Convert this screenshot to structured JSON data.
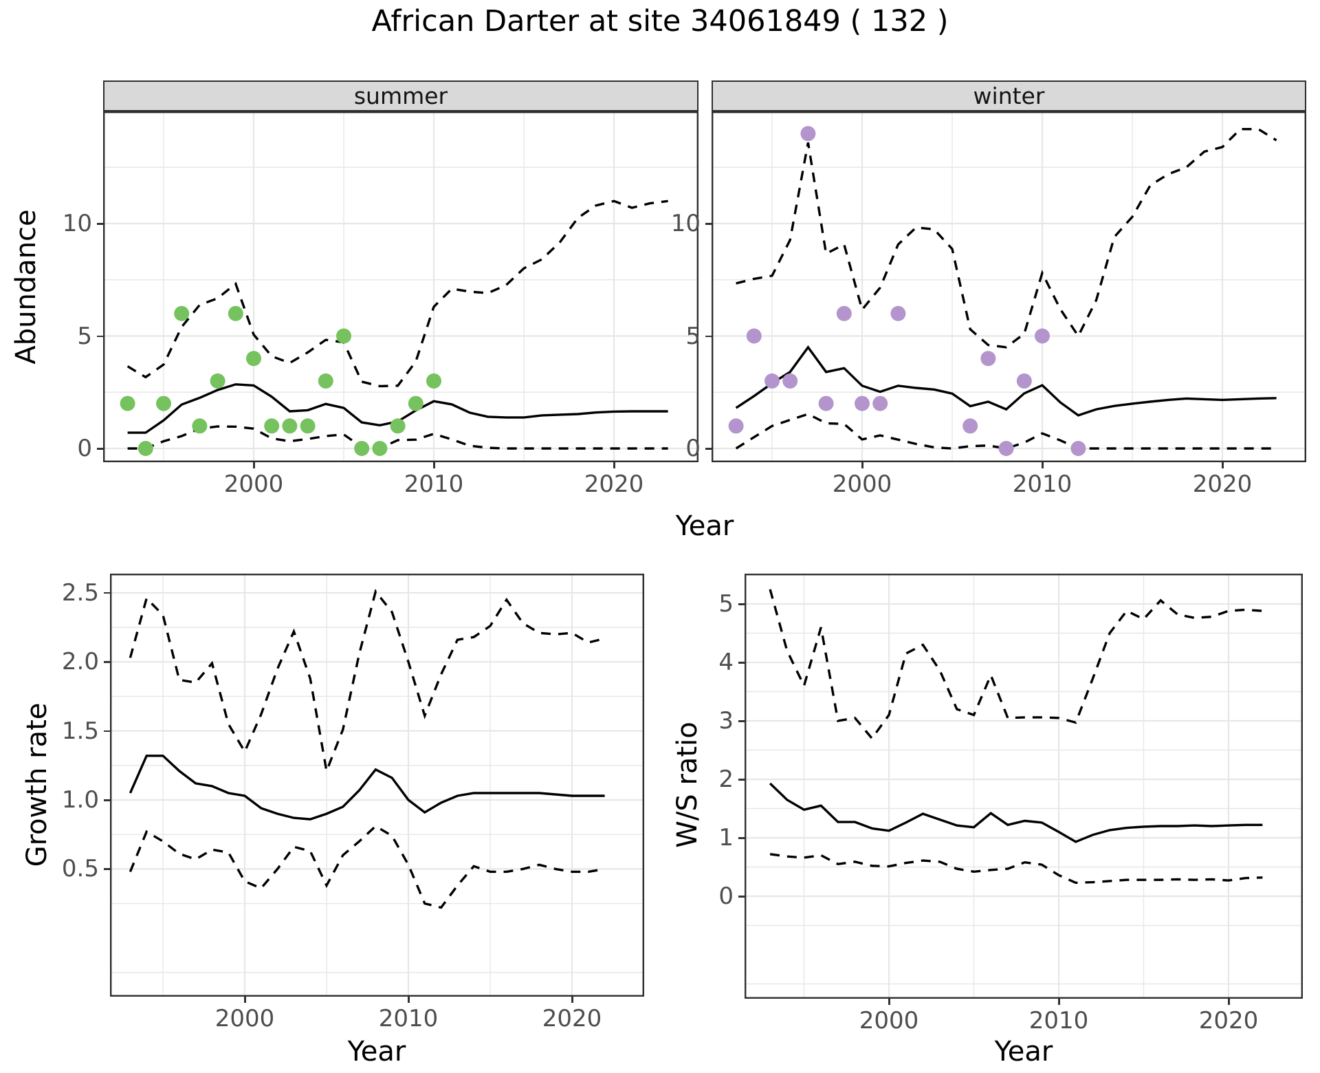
{
  "title": "African Darter at site 34061849 ( 132 )",
  "colors": {
    "summer_points": "#75c25f",
    "winter_points": "#b494cc",
    "line": "#000000",
    "strip_background": "#d9d9d9",
    "gridline": "#e7e7e7",
    "tick_text": "#4d4d4d",
    "panel_border": "#2e2e2e"
  },
  "labels": {
    "facet_summer": "summer",
    "facet_winter": "winter",
    "top_ylabel": "Abundance",
    "top_xlabel": "Year",
    "growth_ylabel": "Growth rate",
    "growth_xlabel": "Year",
    "ws_ylabel": "W/S ratio",
    "ws_xlabel": "Year"
  },
  "chart_data": [
    {
      "panel": "summer",
      "type": "line",
      "title": "summer",
      "xlabel": "Year",
      "ylabel": "Abundance",
      "xlim": [
        1991.6,
        2024.7
      ],
      "ylim": [
        -0.6,
        14.9
      ],
      "x_ticks": [
        2000,
        2010,
        2020
      ],
      "x_tick_labels": [
        "2000",
        "2010",
        "2020"
      ],
      "x_minor": [
        1995,
        2005,
        2015
      ],
      "y_ticks": [
        0,
        5,
        10
      ],
      "y_tick_labels": [
        "0",
        "5",
        "10"
      ],
      "y_minor": [
        2.5,
        7.5,
        12.5
      ],
      "points_color": "#75c25f",
      "points": {
        "years": [
          1993,
          1994,
          1995,
          1996,
          1997,
          1998,
          1999,
          2000,
          2001,
          2002,
          2003,
          2004,
          2005,
          2006,
          2007,
          2008,
          2009,
          2010
        ],
        "values": [
          2,
          0,
          2,
          6,
          1,
          3,
          6,
          4,
          1,
          1,
          1,
          3,
          5,
          0,
          0,
          1,
          2,
          3
        ]
      },
      "series": [
        {
          "name": "median",
          "style": "solid",
          "years": [
            1993,
            1994,
            1995,
            1996,
            1997,
            1998,
            1999,
            2000,
            2001,
            2002,
            2003,
            2004,
            2005,
            2006,
            2007,
            2008,
            2009,
            2010,
            2011,
            2012,
            2013,
            2014,
            2015,
            2016,
            2017,
            2018,
            2019,
            2020,
            2021,
            2022,
            2023
          ],
          "values": [
            0.7,
            0.7,
            1.25,
            1.95,
            2.25,
            2.6,
            2.85,
            2.8,
            2.3,
            1.65,
            1.7,
            1.98,
            1.8,
            1.16,
            1.03,
            1.2,
            1.69,
            2.1,
            1.96,
            1.59,
            1.41,
            1.38,
            1.38,
            1.47,
            1.5,
            1.53,
            1.6,
            1.64,
            1.65,
            1.65,
            1.65
          ]
        },
        {
          "name": "upper_ci",
          "style": "dashed",
          "years": [
            1993,
            1994,
            1995,
            1996,
            1997,
            1998,
            1999,
            2000,
            2001,
            2002,
            2003,
            2004,
            2005,
            2006,
            2007,
            2008,
            2009,
            2010,
            2011,
            2012,
            2013,
            2014,
            2015,
            2016,
            2017,
            2018,
            2019,
            2020,
            2021,
            2022,
            2023
          ],
          "values": [
            3.65,
            3.17,
            3.73,
            5.4,
            6.38,
            6.68,
            7.32,
            5.06,
            4.1,
            3.8,
            4.27,
            4.83,
            4.72,
            2.97,
            2.77,
            2.79,
            3.87,
            6.3,
            7.1,
            6.97,
            6.91,
            7.25,
            8.01,
            8.41,
            9.17,
            10.25,
            10.8,
            11.0,
            10.7,
            10.9,
            11.0
          ]
        },
        {
          "name": "lower_ci",
          "style": "dashed",
          "years": [
            1993,
            1994,
            1995,
            1996,
            1997,
            1998,
            1999,
            2000,
            2001,
            2002,
            2003,
            2004,
            2005,
            2006,
            2007,
            2008,
            2009,
            2010,
            2011,
            2012,
            2013,
            2014,
            2015,
            2016,
            2017,
            2018,
            2019,
            2020,
            2021,
            2022,
            2023
          ],
          "values": [
            0.0,
            0.0,
            0.32,
            0.55,
            0.88,
            0.98,
            0.97,
            0.88,
            0.45,
            0.32,
            0.42,
            0.55,
            0.62,
            0.06,
            0.0,
            0.37,
            0.39,
            0.65,
            0.4,
            0.12,
            0.03,
            0.0,
            0.0,
            0.0,
            0.0,
            0.0,
            0.0,
            0.0,
            0.0,
            0.0,
            0.0
          ]
        }
      ]
    },
    {
      "panel": "winter",
      "type": "line",
      "title": "winter",
      "xlabel": "Year",
      "ylabel": "Abundance",
      "xlim": [
        1991.6,
        2024.7
      ],
      "ylim": [
        -0.6,
        14.9
      ],
      "x_ticks": [
        2000,
        2010,
        2020
      ],
      "x_tick_labels": [
        "2000",
        "2010",
        "2020"
      ],
      "x_minor": [
        1995,
        2005,
        2015
      ],
      "y_ticks": [
        0,
        5,
        10
      ],
      "y_tick_labels": [
        "0",
        "5",
        "10"
      ],
      "y_minor": [
        2.5,
        7.5,
        12.5
      ],
      "points_color": "#b494cc",
      "points": {
        "years": [
          1993,
          1994,
          1995,
          1996,
          1997,
          1998,
          1999,
          2000,
          2001,
          2002,
          2006,
          2007,
          2008,
          2009,
          2010,
          2012
        ],
        "values": [
          1,
          5,
          3,
          3,
          14,
          2,
          6,
          2,
          2,
          6,
          1,
          4,
          0,
          3,
          5,
          0
        ]
      },
      "series": [
        {
          "name": "median",
          "style": "solid",
          "years": [
            1993,
            1994,
            1995,
            1996,
            1997,
            1998,
            1999,
            2000,
            2001,
            2002,
            2003,
            2004,
            2005,
            2006,
            2007,
            2008,
            2009,
            2010,
            2011,
            2012,
            2013,
            2014,
            2015,
            2016,
            2017,
            2018,
            2019,
            2020,
            2021,
            2022,
            2023
          ],
          "values": [
            1.8,
            2.33,
            2.9,
            3.4,
            4.5,
            3.4,
            3.57,
            2.79,
            2.52,
            2.79,
            2.69,
            2.62,
            2.44,
            1.88,
            2.08,
            1.74,
            2.45,
            2.81,
            2.05,
            1.47,
            1.74,
            1.89,
            1.99,
            2.08,
            2.16,
            2.22,
            2.19,
            2.16,
            2.19,
            2.22,
            2.24
          ]
        },
        {
          "name": "upper_ci",
          "style": "dashed",
          "years": [
            1993,
            1994,
            1995,
            1996,
            1997,
            1998,
            1999,
            2000,
            2001,
            2002,
            2003,
            2004,
            2005,
            2006,
            2007,
            2008,
            2009,
            2010,
            2011,
            2012,
            2013,
            2014,
            2015,
            2016,
            2017,
            2018,
            2019,
            2020,
            2021,
            2022,
            2023
          ],
          "values": [
            7.34,
            7.54,
            7.68,
            9.27,
            13.6,
            8.66,
            9.07,
            6.17,
            7.15,
            9.07,
            9.83,
            9.74,
            8.87,
            5.3,
            4.6,
            4.5,
            5.1,
            7.8,
            6.2,
            5.0,
            6.6,
            9.4,
            10.3,
            11.7,
            12.2,
            12.5,
            13.2,
            13.4,
            14.2,
            14.2,
            13.7
          ]
        },
        {
          "name": "lower_ci",
          "style": "dashed",
          "years": [
            1993,
            1994,
            1995,
            1996,
            1997,
            1998,
            1999,
            2000,
            2001,
            2002,
            2003,
            2004,
            2005,
            2006,
            2007,
            2008,
            2009,
            2010,
            2011,
            2012,
            2013,
            2014,
            2015,
            2016,
            2017,
            2018,
            2019,
            2020,
            2021,
            2022,
            2023
          ],
          "values": [
            0.0,
            0.5,
            1.0,
            1.27,
            1.53,
            1.12,
            1.09,
            0.4,
            0.58,
            0.39,
            0.2,
            0.05,
            0.0,
            0.1,
            0.13,
            0.0,
            0.26,
            0.67,
            0.36,
            0.0,
            0.0,
            0.0,
            0.0,
            0.0,
            0.0,
            0.0,
            0.0,
            0.0,
            0.0,
            0.0,
            0.0
          ]
        }
      ]
    },
    {
      "panel": "growth_rate",
      "type": "line",
      "title": "Growth rate",
      "xlabel": "Year",
      "ylabel": "Growth rate",
      "xlim": [
        1991.8,
        2024.4
      ],
      "ylim": [
        -0.43,
        2.64
      ],
      "x_ticks": [
        2000,
        2010,
        2020
      ],
      "x_tick_labels": [
        "2000",
        "2010",
        "2020"
      ],
      "x_minor": [
        1995,
        2005,
        2015
      ],
      "y_ticks": [
        0.5,
        1.0,
        1.5,
        2.0,
        2.5
      ],
      "y_tick_labels": [
        "0.5",
        "1.0",
        "1.5",
        "2.0",
        "2.5"
      ],
      "y_minor": [
        -0.25,
        0.25,
        0.75,
        1.25,
        1.75,
        2.25
      ],
      "series": [
        {
          "name": "median",
          "style": "solid",
          "years": [
            1993,
            1994,
            1995,
            1996,
            1997,
            1998,
            1999,
            2000,
            2001,
            2002,
            2003,
            2004,
            2005,
            2006,
            2007,
            2008,
            2009,
            2010,
            2011,
            2012,
            2013,
            2014,
            2015,
            2016,
            2017,
            2018,
            2019,
            2020,
            2021,
            2022
          ],
          "values": [
            1.05,
            1.32,
            1.32,
            1.21,
            1.12,
            1.1,
            1.05,
            1.03,
            0.94,
            0.9,
            0.87,
            0.86,
            0.9,
            0.95,
            1.07,
            1.22,
            1.16,
            1.0,
            0.91,
            0.98,
            1.03,
            1.05,
            1.05,
            1.05,
            1.05,
            1.05,
            1.04,
            1.03,
            1.03,
            1.03
          ]
        },
        {
          "name": "upper_ci",
          "style": "dashed",
          "years": [
            1993,
            1994,
            1995,
            1996,
            1997,
            1998,
            1999,
            2000,
            2001,
            2002,
            2003,
            2004,
            2005,
            2006,
            2007,
            2008,
            2009,
            2010,
            2011,
            2012,
            2013,
            2014,
            2015,
            2016,
            2017,
            2018,
            2019,
            2020,
            2021,
            2022
          ],
          "values": [
            2.03,
            2.46,
            2.34,
            1.87,
            1.85,
            1.99,
            1.55,
            1.35,
            1.62,
            1.95,
            2.22,
            1.88,
            1.21,
            1.51,
            2.06,
            2.51,
            2.36,
            2.0,
            1.61,
            1.91,
            2.16,
            2.18,
            2.26,
            2.45,
            2.28,
            2.21,
            2.2,
            2.21,
            2.14,
            2.17
          ]
        },
        {
          "name": "lower_ci",
          "style": "dashed",
          "years": [
            1993,
            1994,
            1995,
            1996,
            1997,
            1998,
            1999,
            2000,
            2001,
            2002,
            2003,
            2004,
            2005,
            2006,
            2007,
            2008,
            2009,
            2010,
            2011,
            2012,
            2013,
            2014,
            2015,
            2016,
            2017,
            2018,
            2019,
            2020,
            2021,
            2022
          ],
          "values": [
            0.48,
            0.77,
            0.7,
            0.61,
            0.57,
            0.64,
            0.62,
            0.41,
            0.36,
            0.5,
            0.66,
            0.63,
            0.38,
            0.6,
            0.7,
            0.81,
            0.74,
            0.53,
            0.25,
            0.22,
            0.38,
            0.52,
            0.48,
            0.48,
            0.5,
            0.53,
            0.5,
            0.48,
            0.48,
            0.5
          ]
        }
      ]
    },
    {
      "panel": "ws_ratio",
      "type": "line",
      "title": "W/S ratio",
      "xlabel": "Year",
      "ylabel": "W/S ratio",
      "xlim": [
        1991.5,
        2024.4
      ],
      "ylim": [
        -1.79,
        5.52
      ],
      "x_ticks": [
        2000,
        2010,
        2020
      ],
      "x_tick_labels": [
        "2000",
        "2010",
        "2020"
      ],
      "x_minor": [
        1995,
        2005,
        2015
      ],
      "y_ticks": [
        0,
        1,
        2,
        3,
        4,
        5
      ],
      "y_tick_labels": [
        "0",
        "1",
        "2",
        "3",
        "4",
        "5"
      ],
      "y_minor": [
        -1.5,
        -0.5,
        0.5,
        1.5,
        2.5,
        3.5,
        4.5
      ],
      "series": [
        {
          "name": "median",
          "style": "solid",
          "years": [
            1993,
            1994,
            1995,
            1996,
            1997,
            1998,
            1999,
            2000,
            2001,
            2002,
            2003,
            2004,
            2005,
            2006,
            2007,
            2008,
            2009,
            2010,
            2011,
            2012,
            2013,
            2014,
            2015,
            2016,
            2017,
            2018,
            2019,
            2020,
            2021,
            2022
          ],
          "values": [
            1.93,
            1.65,
            1.48,
            1.55,
            1.27,
            1.27,
            1.16,
            1.12,
            1.26,
            1.41,
            1.31,
            1.21,
            1.18,
            1.42,
            1.22,
            1.29,
            1.26,
            1.1,
            0.93,
            1.05,
            1.13,
            1.17,
            1.19,
            1.2,
            1.2,
            1.21,
            1.2,
            1.21,
            1.22,
            1.22
          ]
        },
        {
          "name": "upper_ci",
          "style": "dashed",
          "years": [
            1993,
            1994,
            1995,
            1996,
            1997,
            1998,
            1999,
            2000,
            2001,
            2002,
            2003,
            2004,
            2005,
            2006,
            2007,
            2008,
            2009,
            2010,
            2011,
            2012,
            2013,
            2014,
            2015,
            2016,
            2017,
            2018,
            2019,
            2020,
            2021,
            2022
          ],
          "values": [
            5.25,
            4.2,
            3.6,
            4.6,
            3.0,
            3.05,
            2.7,
            3.1,
            4.15,
            4.3,
            3.86,
            3.2,
            3.1,
            3.78,
            3.05,
            3.06,
            3.06,
            3.05,
            2.97,
            3.72,
            4.5,
            4.88,
            4.74,
            5.06,
            4.82,
            4.76,
            4.78,
            4.88,
            4.9,
            4.88
          ]
        },
        {
          "name": "lower_ci",
          "style": "dashed",
          "years": [
            1993,
            1994,
            1995,
            1996,
            1997,
            1998,
            1999,
            2000,
            2001,
            2002,
            2003,
            2004,
            2005,
            2006,
            2007,
            2008,
            2009,
            2010,
            2011,
            2012,
            2013,
            2014,
            2015,
            2016,
            2017,
            2018,
            2019,
            2020,
            2021,
            2022
          ],
          "values": [
            0.72,
            0.68,
            0.66,
            0.7,
            0.55,
            0.59,
            0.52,
            0.51,
            0.57,
            0.61,
            0.59,
            0.47,
            0.42,
            0.45,
            0.47,
            0.58,
            0.54,
            0.36,
            0.23,
            0.24,
            0.26,
            0.28,
            0.28,
            0.28,
            0.29,
            0.28,
            0.29,
            0.27,
            0.31,
            0.32
          ]
        }
      ]
    }
  ]
}
